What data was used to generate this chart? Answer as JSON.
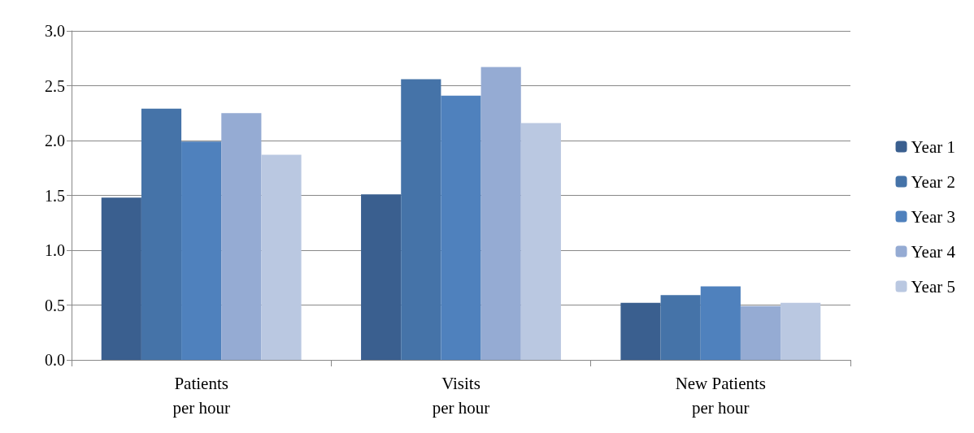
{
  "chart_data": {
    "type": "bar",
    "categories": [
      "Patients\nper hour",
      "Visits\nper hour",
      "New Patients\nper hour"
    ],
    "series": [
      {
        "name": "Year 1",
        "color": "#3a5f8f",
        "values": [
          1.48,
          1.51,
          0.52
        ]
      },
      {
        "name": "Year 2",
        "color": "#4573a8",
        "values": [
          2.29,
          2.56,
          0.59
        ]
      },
      {
        "name": "Year 3",
        "color": "#4f81bd",
        "values": [
          1.99,
          2.41,
          0.67
        ]
      },
      {
        "name": "Year 4",
        "color": "#95abd3",
        "values": [
          2.25,
          2.67,
          0.49
        ]
      },
      {
        "name": "Year 5",
        "color": "#bac8e1",
        "values": [
          1.87,
          2.16,
          0.52
        ]
      }
    ],
    "ylim": [
      0,
      3
    ],
    "yticks": [
      {
        "value": 0,
        "label": "0.0"
      },
      0.5,
      {
        "value": 1,
        "label": "1.0"
      },
      1.5,
      {
        "value": 2,
        "label": "2.0"
      },
      2.5,
      {
        "value": 3,
        "label": "3.0"
      }
    ],
    "grid": "y",
    "legend": "right"
  }
}
